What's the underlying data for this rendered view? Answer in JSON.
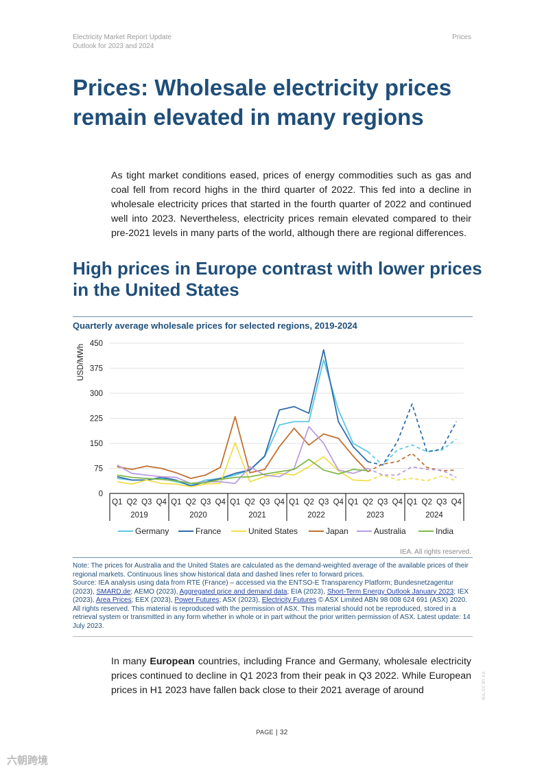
{
  "header": {
    "report_title": "Electricity Market Report Update",
    "report_subtitle": "Outlook for 2023 and 2024",
    "section": "Prices"
  },
  "title": "Prices: Wholesale electricity prices remain elevated in many regions",
  "intro": "As tight market conditions eased, prices of energy commodities such as gas and coal fell from record highs in the third quarter of 2022. This fed into a decline in wholesale electricity prices that started in the fourth quarter of 2022 and continued well into 2023. Nevertheless, electricity prices remain elevated compared to their pre-2021 levels in many parts of the world, although there are regional differences.",
  "subheading": "High prices in Europe contrast with lower prices in the United States",
  "chart_data": {
    "type": "line",
    "title": "Quarterly average wholesale prices for selected regions, 2019-2024",
    "ylabel": "USD/MWh",
    "ylim": [
      0,
      450
    ],
    "yticks": [
      0,
      75,
      150,
      225,
      300,
      375,
      450
    ],
    "quarters": [
      "Q1",
      "Q2",
      "Q3",
      "Q4",
      "Q1",
      "Q2",
      "Q3",
      "Q4",
      "Q1",
      "Q2",
      "Q3",
      "Q4",
      "Q1",
      "Q2",
      "Q3",
      "Q4",
      "Q1",
      "Q2",
      "Q3",
      "Q4",
      "Q1",
      "Q2",
      "Q3",
      "Q4"
    ],
    "years": [
      "2019",
      "2020",
      "2021",
      "2022",
      "2023",
      "2024"
    ],
    "historical_end_index": 17,
    "legend_position": "bottom",
    "grid": "horizontal",
    "series": [
      {
        "name": "Germany",
        "color": "#5bc8e6",
        "values": [
          45,
          40,
          40,
          45,
          35,
          25,
          40,
          45,
          55,
          70,
          110,
          205,
          215,
          215,
          400,
          250,
          150,
          125,
          85,
          130,
          145,
          125,
          130,
          162
        ]
      },
      {
        "name": "France",
        "color": "#2e6da9",
        "values": [
          50,
          40,
          40,
          48,
          40,
          22,
          35,
          45,
          60,
          70,
          112,
          250,
          260,
          240,
          430,
          215,
          140,
          95,
          85,
          155,
          268,
          125,
          132,
          215
        ]
      },
      {
        "name": "United States",
        "color": "#f2de4a",
        "values": [
          35,
          28,
          40,
          30,
          28,
          20,
          28,
          30,
          152,
          35,
          50,
          60,
          55,
          80,
          110,
          68,
          40,
          38,
          55,
          40,
          45,
          38,
          52,
          38
        ]
      },
      {
        "name": "Japan",
        "color": "#c07030",
        "values": [
          80,
          72,
          82,
          75,
          62,
          45,
          55,
          78,
          230,
          62,
          72,
          140,
          195,
          145,
          178,
          165,
          112,
          65,
          88,
          95,
          120,
          78,
          68,
          70
        ]
      },
      {
        "name": "Australia",
        "color": "#b89de0",
        "values": [
          85,
          60,
          55,
          50,
          48,
          30,
          35,
          35,
          30,
          80,
          55,
          50,
          75,
          200,
          150,
          70,
          60,
          75,
          55,
          55,
          80,
          72,
          70,
          48
        ]
      },
      {
        "name": "India",
        "color": "#7fb84a",
        "values": [
          55,
          48,
          45,
          42,
          38,
          30,
          32,
          42,
          48,
          50,
          58,
          65,
          72,
          102,
          70,
          58,
          72,
          68,
          null,
          null,
          null,
          null,
          null,
          null
        ]
      }
    ]
  },
  "chart_rights": "IEA. All rights reserved.",
  "notes": {
    "note": "Note: The prices for Australia and the United States are calculated as the demand-weighted average of the available prices of their regional markets. Continuous lines show historical data and dashed lines refer to forward prices.",
    "source_1": "Source: IEA analysis using data from RTE (France) – accessed via the ENTSO-E Transparency Platform; Bundesnetzagentur (2023),",
    "link_smard": "SMARD.de",
    "source_2": "; AEMO (2023),",
    "link_aemo": "Aggregated price and demand data",
    "source_3": "; EIA (2023),",
    "link_eia": "Short-Term Energy Outlook January 2023",
    "source_4": "; IEX (2023),",
    "link_iex": "Area Prices",
    "source_5": "; EEX (2023),",
    "link_eex": "Power Futures",
    "source_6": "; ASX (2023),",
    "link_asx": "Electricity Futures",
    "source_7": "© ASX Limited ABN 98 008 624 691 (ASX) 2020. All rights reserved. This material is reproduced with the permission of ASX. This material should not be reproduced, stored in a retrieval system or transmitted in any form whether in whole or in part without the prior written permission of ASX. Latest update: 14 July 2023."
  },
  "body": {
    "p1_a": "In many",
    "p1_bold": "European",
    "p1_b": "countries, including France and Germany, wholesale electricity prices continued to decline in Q1 2023 from their peak in Q3 2022. While European prices in H1 2023 have fallen back close to their 2021 average of around"
  },
  "footer": {
    "page_label": "Page",
    "page_number": "32"
  },
  "side_text": "IEA. CC BY 4.0.",
  "watermark": "六朝跨境"
}
